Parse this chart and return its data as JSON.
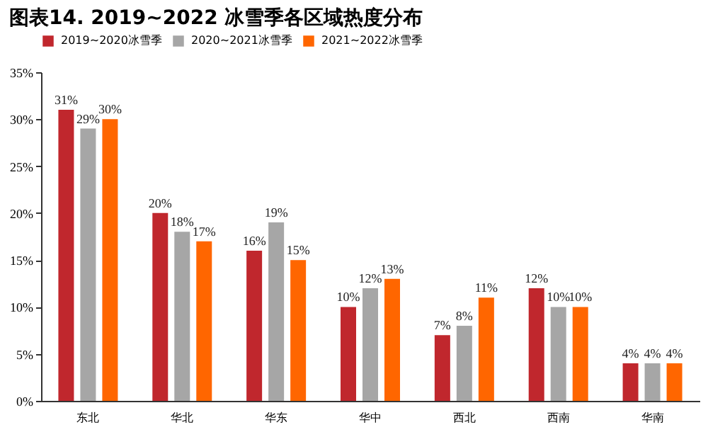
{
  "chart_data": {
    "type": "bar",
    "title": "图表14. 2019~2022 冰雪季各区域热度分布",
    "categories": [
      "东北",
      "华北",
      "华东",
      "华中",
      "西北",
      "西南",
      "华南"
    ],
    "series": [
      {
        "name": "2019~2020冰雪季",
        "color": "#c0272d",
        "values": [
          31,
          20,
          16,
          10,
          7,
          12,
          4
        ],
        "value_labels": [
          "31%",
          "20%",
          "16%",
          "10%",
          "7%",
          "12%",
          "4%"
        ]
      },
      {
        "name": "2020~2021冰雪季",
        "color": "#a6a6a6",
        "values": [
          29,
          18,
          19,
          12,
          8,
          10,
          4
        ],
        "value_labels": [
          "29%",
          "18%",
          "19%",
          "12%",
          "8%",
          "10%",
          "4%"
        ]
      },
      {
        "name": "2021~2022冰雪季",
        "color": "#ff6600",
        "values": [
          30,
          17,
          15,
          13,
          11,
          10,
          4
        ],
        "value_labels": [
          "30%",
          "17%",
          "15%",
          "13%",
          "11%",
          "10%",
          "4%"
        ]
      }
    ],
    "ylim": [
      0,
      35
    ],
    "yticks": [
      {
        "value": 0,
        "label": "0%"
      },
      {
        "value": 5,
        "label": "5%"
      },
      {
        "value": 10,
        "label": "10%"
      },
      {
        "value": 15,
        "label": "15%"
      },
      {
        "value": 20,
        "label": "20%"
      },
      {
        "value": 25,
        "label": "25%"
      },
      {
        "value": 30,
        "label": "30%"
      },
      {
        "value": 35,
        "label": "35%"
      }
    ],
    "grid": false,
    "legend": "top"
  }
}
